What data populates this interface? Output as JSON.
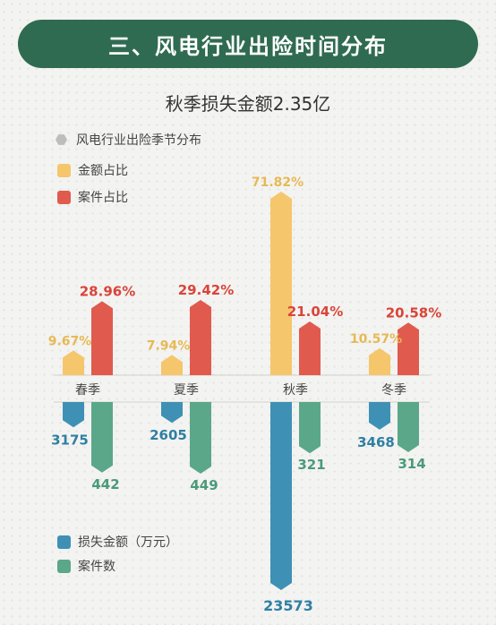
{
  "header": {
    "title": "三、风电行业出险时间分布"
  },
  "subtitle": "秋季损失金额2.35亿",
  "legend": {
    "section_title": "风电行业出险季节分布",
    "amount_share": "金额占比",
    "case_share": "案件占比",
    "loss_amount": "损失金额（万元）",
    "case_count": "案件数"
  },
  "colors": {
    "amount_share": "#f5c66c",
    "case_share": "#e05a4e",
    "loss_amount": "#3e91b5",
    "case_count": "#5aa889",
    "banner": "#2f6b51"
  },
  "chart_data": {
    "type": "bar",
    "categories": [
      "春季",
      "夏季",
      "秋季",
      "冬季"
    ],
    "series": [
      {
        "name": "金额占比",
        "unit": "%",
        "values": [
          9.67,
          7.94,
          71.82,
          10.57
        ]
      },
      {
        "name": "案件占比",
        "unit": "%",
        "values": [
          28.96,
          29.42,
          21.04,
          20.58
        ]
      },
      {
        "name": "损失金额（万元）",
        "values": [
          3175,
          2605,
          23573,
          3468
        ]
      },
      {
        "name": "案件数",
        "values": [
          442,
          449,
          321,
          314
        ]
      }
    ],
    "labels": {
      "amount_share": [
        "9.67%",
        "7.94%",
        "71.82%",
        "10.57%"
      ],
      "case_share": [
        "28.96%",
        "29.42%",
        "21.04%",
        "20.58%"
      ],
      "loss_amount": [
        "3175",
        "2605",
        "23573",
        "3468"
      ],
      "case_count": [
        "442",
        "449",
        "321",
        "314"
      ]
    }
  }
}
